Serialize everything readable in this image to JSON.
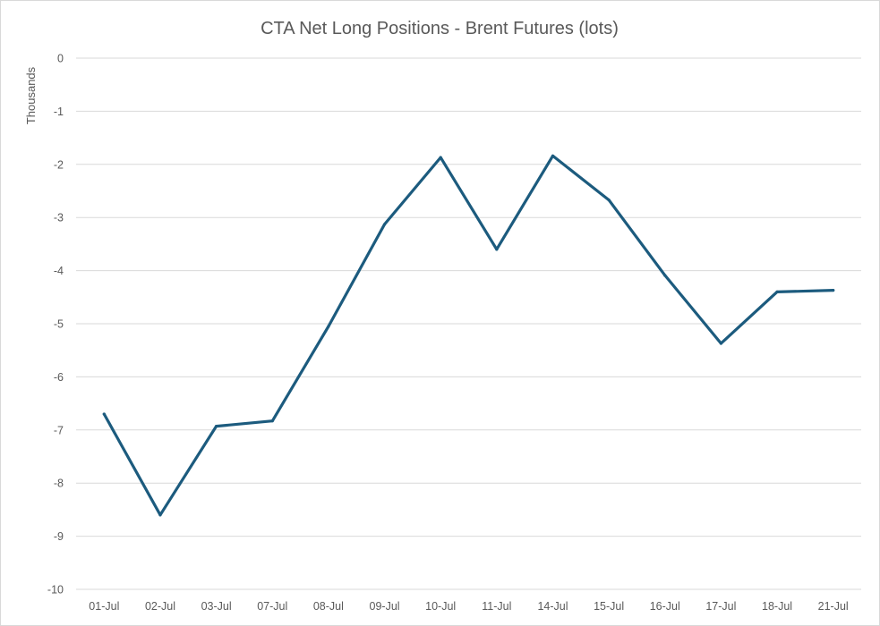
{
  "chart_data": {
    "type": "line",
    "title": "CTA Net Long Positions - Brent Futures (lots)",
    "xlabel": "",
    "ylabel": "Thousands",
    "categories": [
      "01-Jul",
      "02-Jul",
      "03-Jul",
      "07-Jul",
      "08-Jul",
      "09-Jul",
      "10-Jul",
      "11-Jul",
      "14-Jul",
      "15-Jul",
      "16-Jul",
      "17-Jul",
      "18-Jul",
      "21-Jul"
    ],
    "series": [
      {
        "values": [
          -6.7,
          -8.6,
          -6.93,
          -6.83,
          -5.05,
          -3.13,
          -1.87,
          -3.6,
          -1.84,
          -2.67,
          -4.09,
          -5.37,
          -4.4,
          -4.37
        ],
        "color": "#1c5b7e"
      }
    ],
    "ylim": [
      -10,
      0
    ],
    "yticks": [
      0,
      -1,
      -2,
      -3,
      -4,
      -5,
      -6,
      -7,
      -8,
      -9,
      -10
    ],
    "grid": true,
    "legend": "none"
  }
}
